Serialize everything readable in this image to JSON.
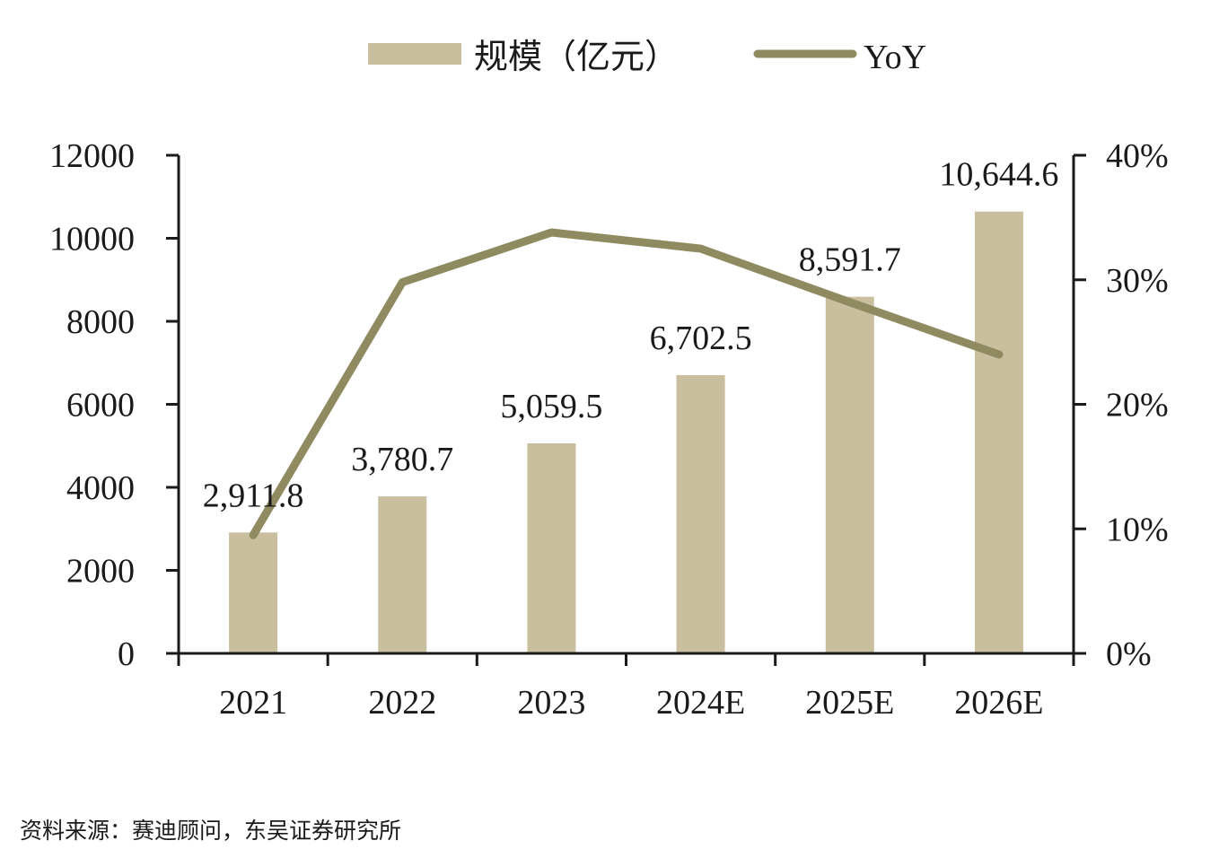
{
  "chart_data": {
    "type": "bar",
    "categories": [
      "2021",
      "2022",
      "2023",
      "2024E",
      "2025E",
      "2026E"
    ],
    "series": [
      {
        "name": "规模（亿元）",
        "type": "bar",
        "axis": "left",
        "values": [
          2911.8,
          3780.7,
          5059.5,
          6702.5,
          8591.7,
          10644.6
        ],
        "labels": [
          "2,911.8",
          "3,780.7",
          "5,059.5",
          "6,702.5",
          "8,591.7",
          "10,644.6"
        ],
        "color": "#c9bf9f"
      },
      {
        "name": "YoY",
        "type": "line",
        "axis": "right",
        "values": [
          9.5,
          29.8,
          33.8,
          32.5,
          28.2,
          24.0
        ],
        "unit": "%",
        "color": "#8f8a5f"
      }
    ],
    "y_left": {
      "ylim": [
        0,
        12000
      ],
      "ticks": [
        "0",
        "2000",
        "4000",
        "6000",
        "8000",
        "10000",
        "12000"
      ]
    },
    "y_right": {
      "ylim": [
        0,
        40
      ],
      "ticks": [
        "0%",
        "10%",
        "20%",
        "30%",
        "40%"
      ]
    },
    "legend": {
      "placement": "top-center"
    },
    "grid": false
  },
  "source_note": "资料来源：赛迪顾问，东吴证券研究所"
}
